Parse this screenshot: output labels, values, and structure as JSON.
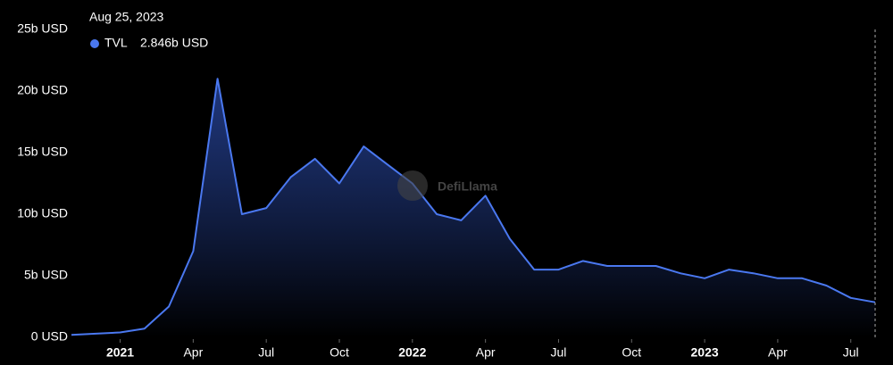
{
  "chart_data": {
    "type": "area",
    "tooltip": {
      "date": "Aug 25, 2023",
      "label": "TVL",
      "value_label": "2.846b USD"
    },
    "watermark": "DefiLlama",
    "x": [
      "2020-11",
      "2020-12",
      "2021-01",
      "2021-02",
      "2021-03",
      "2021-04",
      "2021-05",
      "2021-06",
      "2021-07",
      "2021-08",
      "2021-09",
      "2021-10",
      "2021-11",
      "2021-12",
      "2022-01",
      "2022-02",
      "2022-03",
      "2022-04",
      "2022-05",
      "2022-06",
      "2022-07",
      "2022-08",
      "2022-09",
      "2022-10",
      "2022-11",
      "2022-12",
      "2023-01",
      "2023-02",
      "2023-03",
      "2023-04",
      "2023-05",
      "2023-06",
      "2023-07",
      "2023-08"
    ],
    "series": [
      {
        "name": "TVL",
        "color": "#4a78f0",
        "values": [
          0.2,
          0.3,
          0.4,
          0.7,
          2.5,
          7,
          21,
          10,
          10.5,
          13,
          14.5,
          12.5,
          15.5,
          14,
          12.5,
          10,
          9.5,
          11.5,
          8,
          5.5,
          5.5,
          6.2,
          5.8,
          5.8,
          5.8,
          5.2,
          4.8,
          5.5,
          5.2,
          4.8,
          4.8,
          4.2,
          3.2,
          2.846
        ]
      }
    ],
    "xlim": [
      "2020-11",
      "2023-08"
    ],
    "xticks": [
      {
        "value": "2021-01",
        "label": "2021"
      },
      {
        "value": "2021-04",
        "label": "Apr"
      },
      {
        "value": "2021-07",
        "label": "Jul"
      },
      {
        "value": "2021-10",
        "label": "Oct"
      },
      {
        "value": "2022-01",
        "label": "2022"
      },
      {
        "value": "2022-04",
        "label": "Apr"
      },
      {
        "value": "2022-07",
        "label": "Jul"
      },
      {
        "value": "2022-10",
        "label": "Oct"
      },
      {
        "value": "2023-01",
        "label": "2023"
      },
      {
        "value": "2023-04",
        "label": "Apr"
      },
      {
        "value": "2023-07",
        "label": "Jul"
      }
    ],
    "ylim": [
      0,
      25
    ],
    "yticks": [
      {
        "value": 0,
        "label": "0 USD"
      },
      {
        "value": 5,
        "label": "5b USD"
      },
      {
        "value": 10,
        "label": "10b USD"
      },
      {
        "value": 15,
        "label": "15b USD"
      },
      {
        "value": 20,
        "label": "20b USD"
      },
      {
        "value": 25,
        "label": "25b USD"
      }
    ]
  }
}
